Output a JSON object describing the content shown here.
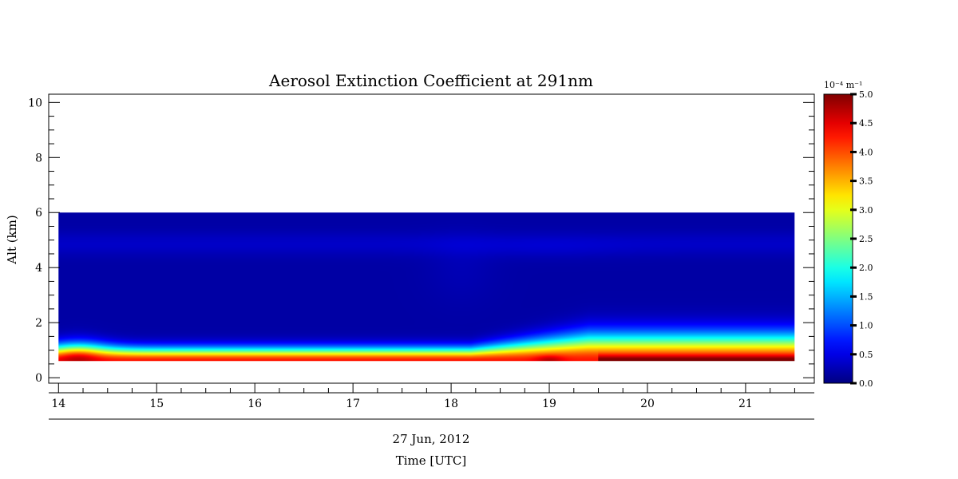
{
  "chart_data": {
    "type": "heatmap",
    "title": "Aerosol Extinction Coefficient at 291nm",
    "xlabel": "Time [UTC]",
    "date_label": "27 Jun, 2012",
    "ylabel": "Alt (km)",
    "xlim": [
      13.9,
      21.7
    ],
    "ylim": [
      -0.2,
      10.3
    ],
    "xticks": [
      14,
      15,
      16,
      17,
      18,
      19,
      20,
      21
    ],
    "yticks": [
      0,
      2,
      4,
      6,
      8,
      10
    ],
    "data_extent": {
      "x": [
        14.0,
        21.5
      ],
      "y": [
        0.6,
        6.0
      ]
    },
    "colorbar": {
      "unit": "10⁻⁴ m⁻¹",
      "range": [
        0.0,
        5.0
      ],
      "ticks": [
        "0.0",
        "0.5",
        "1.0",
        "1.5",
        "2.0",
        "2.5",
        "3.0",
        "3.5",
        "4.0",
        "4.5",
        "5.0"
      ],
      "colormap": "jet"
    },
    "features": [
      {
        "name": "surface layer",
        "x_range": [
          14.0,
          21.5
        ],
        "alt_peak": 0.7,
        "peak_value": 4.5,
        "depth_km": 0.45
      },
      {
        "name": "plume",
        "x_center": 14.2,
        "alt_peak": 0.8,
        "peak_value": 5.0
      },
      {
        "name": "plume",
        "x_center": 19.0,
        "alt_peak": 0.7,
        "peak_value": 4.8
      },
      {
        "name": "elevated layer",
        "x_range": [
          19.5,
          21.5
        ],
        "alt_peak": 0.7,
        "peak_value": 5.0
      },
      {
        "name": "aerosol band",
        "alt_center": 4.8,
        "peak_value": 0.35
      }
    ]
  }
}
